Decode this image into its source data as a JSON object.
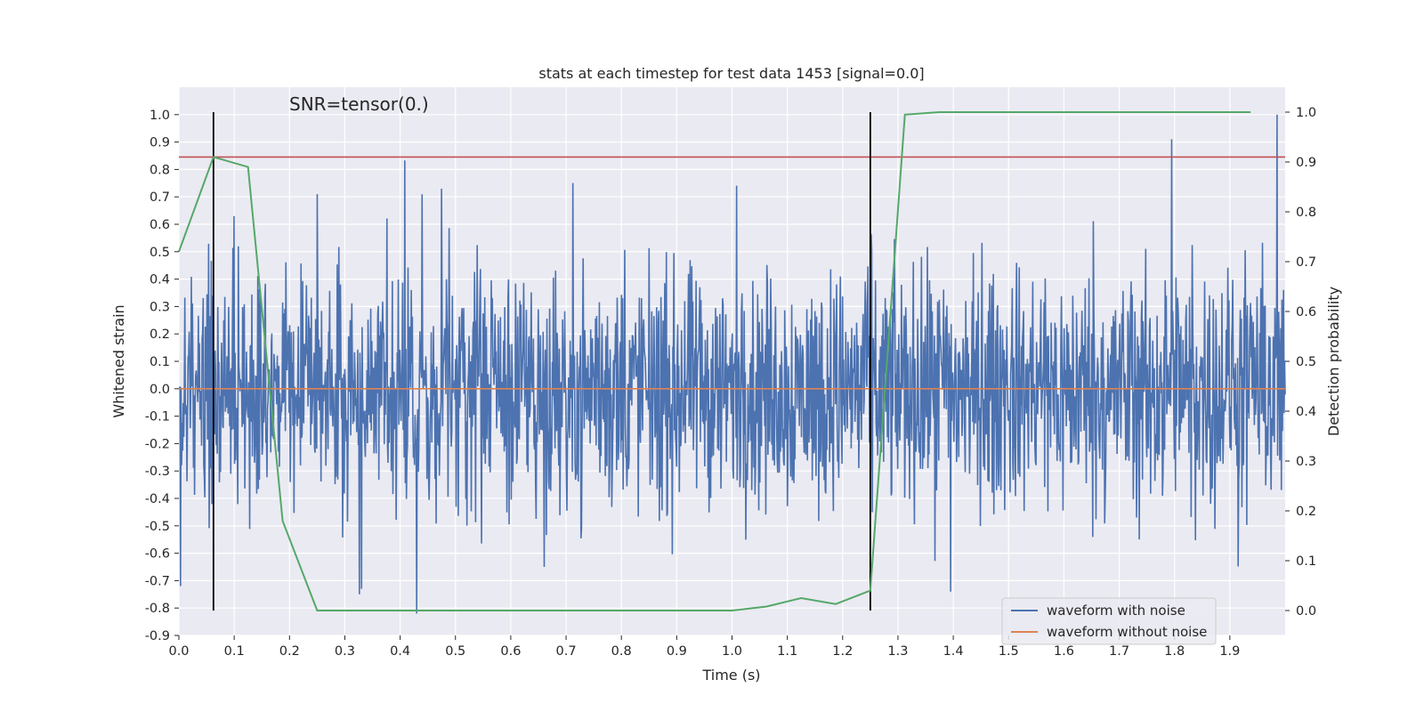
{
  "chart_data": {
    "type": "line",
    "title": "stats at each timestep for test data 1453 [signal=0.0]",
    "annotation": "SNR=tensor(0.)",
    "xlabel": "Time (s)",
    "ylabel_left": "Whitened strain",
    "ylabel_right": "Detection probability",
    "xlim": [
      0.0,
      2.0
    ],
    "ylim_left": [
      -0.9,
      1.1
    ],
    "ylim_right": [
      -0.05,
      1.05
    ],
    "x_ticks": [
      "0.0",
      "0.1",
      "0.2",
      "0.3",
      "0.4",
      "0.5",
      "0.6",
      "0.7",
      "0.8",
      "0.9",
      "1.0",
      "1.1",
      "1.2",
      "1.3",
      "1.4",
      "1.5",
      "1.6",
      "1.7",
      "1.8",
      "1.9"
    ],
    "y_ticks_left": [
      "1.0",
      "0.9",
      "0.8",
      "0.7",
      "0.6",
      "0.5",
      "0.4",
      "0.3",
      "0.2",
      "0.1",
      "0.0",
      "-0.1",
      "-0.2",
      "-0.3",
      "-0.4",
      "-0.5",
      "-0.6",
      "-0.7",
      "-0.8",
      "-0.9"
    ],
    "y_ticks_right": [
      "1.0",
      "0.9",
      "0.8",
      "0.7",
      "0.6",
      "0.5",
      "0.4",
      "0.3",
      "0.2",
      "0.1",
      "0.0"
    ],
    "grid": true,
    "legend_position": "lower right",
    "legend": [
      {
        "label": "waveform with noise",
        "color": "#4c72b0"
      },
      {
        "label": "waveform without noise",
        "color": "#dd8452"
      }
    ],
    "series": [
      {
        "name": "waveform with noise",
        "axis": "left",
        "color": "#4c72b0",
        "description": "dense whitened noise, roughly uniform amplitude within about -0.6..0.6 with occasional spikes",
        "sample_count": 2048,
        "spikes": [
          {
            "x": 0.43,
            "y": -0.82
          },
          {
            "x": 0.475,
            "y": 0.73
          },
          {
            "x": 0.25,
            "y": 0.71
          },
          {
            "x": 0.1,
            "y": 0.63
          },
          {
            "x": 1.395,
            "y": -0.74
          },
          {
            "x": 1.795,
            "y": 0.91
          },
          {
            "x": 1.985,
            "y": 1.0
          },
          {
            "x": 0.33,
            "y": -0.73
          },
          {
            "x": 0.66,
            "y": -0.65
          },
          {
            "x": 0.003,
            "y": -0.72
          }
        ]
      },
      {
        "name": "waveform without noise",
        "axis": "left",
        "color": "#dd8452",
        "x": [
          0.0,
          2.0
        ],
        "y": [
          0.0,
          0.0
        ]
      },
      {
        "axis": "right",
        "color": "#55a868",
        "x": [
          0.0,
          0.0625,
          0.125,
          0.1875,
          0.25,
          0.3,
          0.4375,
          0.625,
          1.0,
          1.0625,
          1.125,
          1.1875,
          1.25,
          1.3125,
          1.375,
          1.4375,
          1.9375
        ],
        "y": [
          0.72,
          0.91,
          0.89,
          0.18,
          0.0,
          0.0,
          0.0,
          0.0,
          0.0,
          0.008,
          0.025,
          0.013,
          0.04,
          0.995,
          1.0,
          1.0,
          1.0
        ]
      }
    ],
    "threshold": {
      "axis": "right",
      "value": 0.91,
      "color": "#c44e52"
    },
    "vlines": [
      {
        "x": 0.0625,
        "y_from": 0.0,
        "y_to": 1.0,
        "axis": "right",
        "color": "#000000"
      },
      {
        "x": 1.25,
        "y_from": 0.0,
        "y_to": 1.0,
        "axis": "right",
        "color": "#000000"
      }
    ],
    "colors": {
      "plot_background": "#eaeaf2",
      "grid": "#ffffff"
    }
  }
}
